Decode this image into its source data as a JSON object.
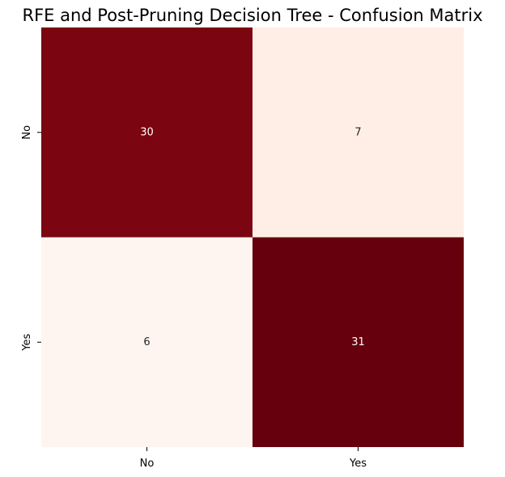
{
  "chart_data": {
    "type": "heatmap",
    "title": "RFE and Post-Pruning Decision Tree - Confusion Matrix",
    "xlabel": "",
    "ylabel": "",
    "x_categories": [
      "No",
      "Yes"
    ],
    "y_categories": [
      "No",
      "Yes"
    ],
    "values": [
      [
        30,
        7
      ],
      [
        6,
        31
      ]
    ],
    "colormap": "Reds",
    "colors": {
      "background": "#ffffff",
      "high": "#67000d",
      "low": "#fff5f0",
      "text_on_dark": "#ffffff",
      "text_on_light": "#262626"
    },
    "colorbar": false,
    "annotations": true
  }
}
